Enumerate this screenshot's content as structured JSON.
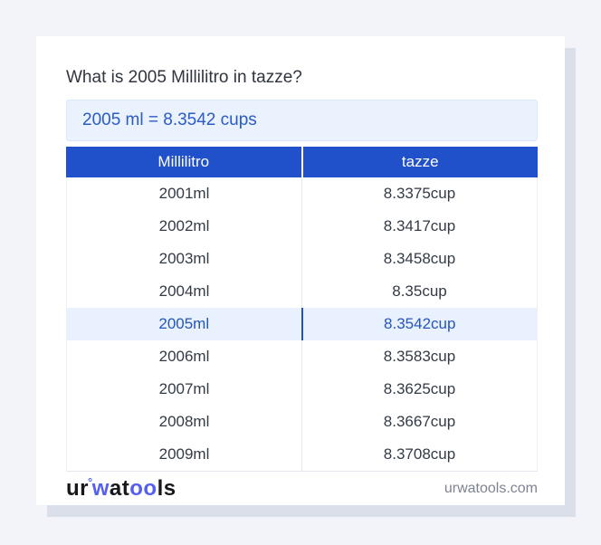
{
  "page": {
    "title": "What is 2005 Millilitro in tazze?",
    "result": "2005 ml = 8.3542 cups"
  },
  "table": {
    "col1_header": "Millilitro",
    "col2_header": "tazze",
    "highlight_index": 4,
    "rows": [
      [
        "2001ml",
        "8.3375cup"
      ],
      [
        "2002ml",
        "8.3417cup"
      ],
      [
        "2003ml",
        "8.3458cup"
      ],
      [
        "2004ml",
        "8.35cup"
      ],
      [
        "2005ml",
        "8.3542cup"
      ],
      [
        "2006ml",
        "8.3583cup"
      ],
      [
        "2007ml",
        "8.3625cup"
      ],
      [
        "2008ml",
        "8.3667cup"
      ],
      [
        "2009ml",
        "8.3708cup"
      ]
    ]
  },
  "footer": {
    "logo_segments": [
      {
        "text": "ur",
        "style": "dark"
      },
      {
        "text": "°",
        "style": "degree"
      },
      {
        "text": "w",
        "style": "blue"
      },
      {
        "text": "a",
        "style": "dark"
      },
      {
        "text": "t",
        "style": "dark"
      },
      {
        "text": "oo",
        "style": "blue"
      },
      {
        "text": "ls",
        "style": "dark"
      }
    ],
    "domain": "urwatools.com"
  },
  "colors": {
    "page_background": "#f3f4f9",
    "card_background": "#ffffff",
    "card_shadow": "#dbdfea",
    "header_blue": "#2150cb",
    "result_box_background": "#e9f2fd",
    "result_text_blue": "#2b5bc4",
    "highlight_row_background": "#e8f1fd",
    "highlight_text_blue": "#2456bb",
    "logo_blue": "#5560ee",
    "body_text": "#333b46"
  }
}
